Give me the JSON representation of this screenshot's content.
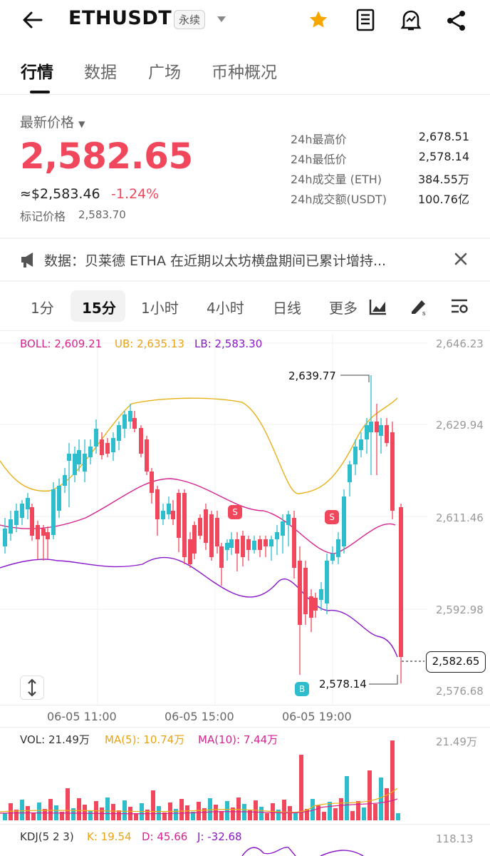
{
  "header": {
    "symbol": "ETHUSDT",
    "contract_type": "永续",
    "icons": [
      "back-arrow-icon",
      "dropdown-caret-icon",
      "star-icon",
      "book-icon",
      "alert-bell-icon",
      "share-icon"
    ]
  },
  "tabs": [
    {
      "label": "行情",
      "active": true
    },
    {
      "label": "数据",
      "active": false
    },
    {
      "label": "广场",
      "active": false
    },
    {
      "label": "币种概况",
      "active": false
    }
  ],
  "ticker": {
    "price_label": "最新价格",
    "last_price": "2,582.65",
    "usd_price": "≈$2,583.46",
    "change_pct": "-1.24%",
    "mark_price_label": "标记价格",
    "mark_price": "2,583.70",
    "stats": [
      {
        "label": "24h最高价",
        "value": "2,678.51"
      },
      {
        "label": "24h最低价",
        "value": "2,578.14"
      },
      {
        "label": "24h成交量 (ETH)",
        "value": "384.55万"
      },
      {
        "label": "24h成交额(USDT)",
        "value": "100.76亿"
      }
    ]
  },
  "news": {
    "text": "数据：贝莱德 ETHA 在近期以太坊横盘期间已累计增持..."
  },
  "intervals": [
    {
      "label": "1分",
      "active": false
    },
    {
      "label": "15分",
      "active": true
    },
    {
      "label": "1小时",
      "active": false
    },
    {
      "label": "4小时",
      "active": false
    },
    {
      "label": "日线",
      "active": false
    },
    {
      "label": "更多",
      "active": false
    }
  ],
  "chart": {
    "boll": "BOLL: 2,609.21",
    "ub": "UB: 2,635.13",
    "lb": "LB: 2,583.30",
    "y_ticks": [
      "2,646.23",
      "2,629.94",
      "2,611.46",
      "2,592.98",
      "2,576.68"
    ],
    "x_ticks": [
      "06-05 11:00",
      "06-05 15:00",
      "06-05 19:00"
    ],
    "high_note": "2,639.77",
    "low_note": "2,578.14",
    "last_label": "2,582.65",
    "markers": {
      "sell": "S",
      "buy": "B"
    },
    "colors": {
      "up": "#2ebdcc",
      "down": "#f0475c",
      "boll": "#d6238f",
      "ub": "#e8b017",
      "lb": "#8a17c9"
    }
  },
  "volume": {
    "vol": "VOL: 21.49万",
    "ma5": "MA(5): 10.74万",
    "ma10": "MA(10): 7.44万",
    "y_max": "21.49万"
  },
  "kdj": {
    "title": "KDJ(5 2 3)",
    "k": "K: 19.54",
    "d": "D: 45.66",
    "j": "J: -32.68",
    "y_max": "118.13"
  }
}
